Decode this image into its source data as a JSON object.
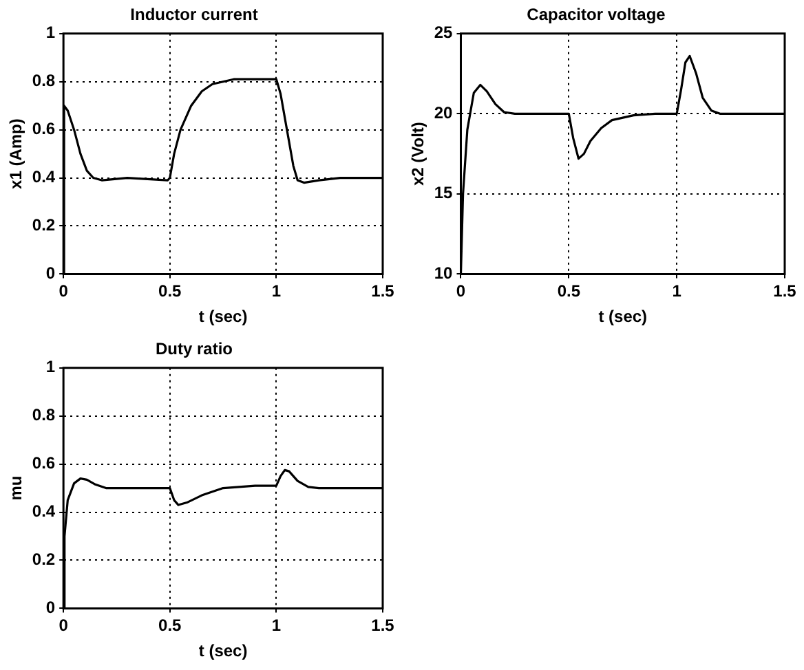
{
  "chart_data": [
    {
      "type": "line",
      "title": "Inductor current",
      "xlabel": "t (sec)",
      "ylabel": "x1 (Amp)",
      "xlim": [
        0,
        1.5
      ],
      "xticks": [
        0,
        0.5,
        1,
        1.5
      ],
      "ylim": [
        0,
        1
      ],
      "yticks": [
        0,
        0.2,
        0.4,
        0.6,
        0.8,
        1
      ],
      "grid": true,
      "legend": false,
      "marker": "none",
      "line_style": "solid",
      "series": [
        {
          "color": "#000000",
          "x": [
            0,
            0.003,
            0.02,
            0.05,
            0.08,
            0.11,
            0.14,
            0.18,
            0.3,
            0.49,
            0.5,
            0.52,
            0.55,
            0.6,
            0.65,
            0.7,
            0.8,
            1.0,
            1.02,
            1.05,
            1.08,
            1.1,
            1.13,
            1.2,
            1.3,
            1.5
          ],
          "values": [
            0,
            0.7,
            0.68,
            0.6,
            0.5,
            0.43,
            0.4,
            0.39,
            0.4,
            0.39,
            0.4,
            0.5,
            0.6,
            0.7,
            0.76,
            0.79,
            0.81,
            0.81,
            0.75,
            0.6,
            0.45,
            0.39,
            0.38,
            0.39,
            0.4,
            0.4
          ]
        }
      ]
    },
    {
      "type": "line",
      "title": "Capacitor voltage",
      "xlabel": "t (sec)",
      "ylabel": "x2 (Volt)",
      "xlim": [
        0,
        1.5
      ],
      "xticks": [
        0,
        0.5,
        1,
        1.5
      ],
      "ylim": [
        10,
        25
      ],
      "yticks": [
        10,
        15,
        20,
        25
      ],
      "grid": true,
      "legend": false,
      "marker": "none",
      "line_style": "solid",
      "series": [
        {
          "color": "#000000",
          "x": [
            0,
            0.01,
            0.03,
            0.06,
            0.09,
            0.12,
            0.16,
            0.2,
            0.25,
            0.5,
            0.52,
            0.545,
            0.57,
            0.6,
            0.65,
            0.7,
            0.8,
            0.9,
            1.0,
            1.02,
            1.04,
            1.06,
            1.09,
            1.12,
            1.16,
            1.2,
            1.5
          ],
          "values": [
            10,
            15,
            19,
            21.3,
            21.8,
            21.4,
            20.6,
            20.1,
            20,
            20,
            18.5,
            17.2,
            17.5,
            18.3,
            19.1,
            19.6,
            19.9,
            20,
            20,
            21.5,
            23.2,
            23.6,
            22.5,
            21,
            20.2,
            20,
            20
          ]
        }
      ]
    },
    {
      "type": "line",
      "title": "Duty ratio",
      "xlabel": "t (sec)",
      "ylabel": "mu",
      "xlim": [
        0,
        1.5
      ],
      "xticks": [
        0,
        0.5,
        1,
        1.5
      ],
      "ylim": [
        0,
        1
      ],
      "yticks": [
        0,
        0.2,
        0.4,
        0.6,
        0.8,
        1
      ],
      "grid": true,
      "legend": false,
      "marker": "none",
      "line_style": "solid",
      "series": [
        {
          "color": "#000000",
          "x": [
            0,
            0.005,
            0.02,
            0.05,
            0.08,
            0.11,
            0.15,
            0.2,
            0.5,
            0.52,
            0.54,
            0.58,
            0.65,
            0.75,
            0.9,
            1.0,
            1.02,
            1.04,
            1.06,
            1.1,
            1.15,
            1.2,
            1.5
          ],
          "values": [
            0,
            0.3,
            0.45,
            0.52,
            0.54,
            0.535,
            0.515,
            0.5,
            0.5,
            0.45,
            0.43,
            0.44,
            0.47,
            0.5,
            0.51,
            0.51,
            0.55,
            0.575,
            0.57,
            0.53,
            0.505,
            0.5,
            0.5
          ]
        }
      ]
    }
  ]
}
